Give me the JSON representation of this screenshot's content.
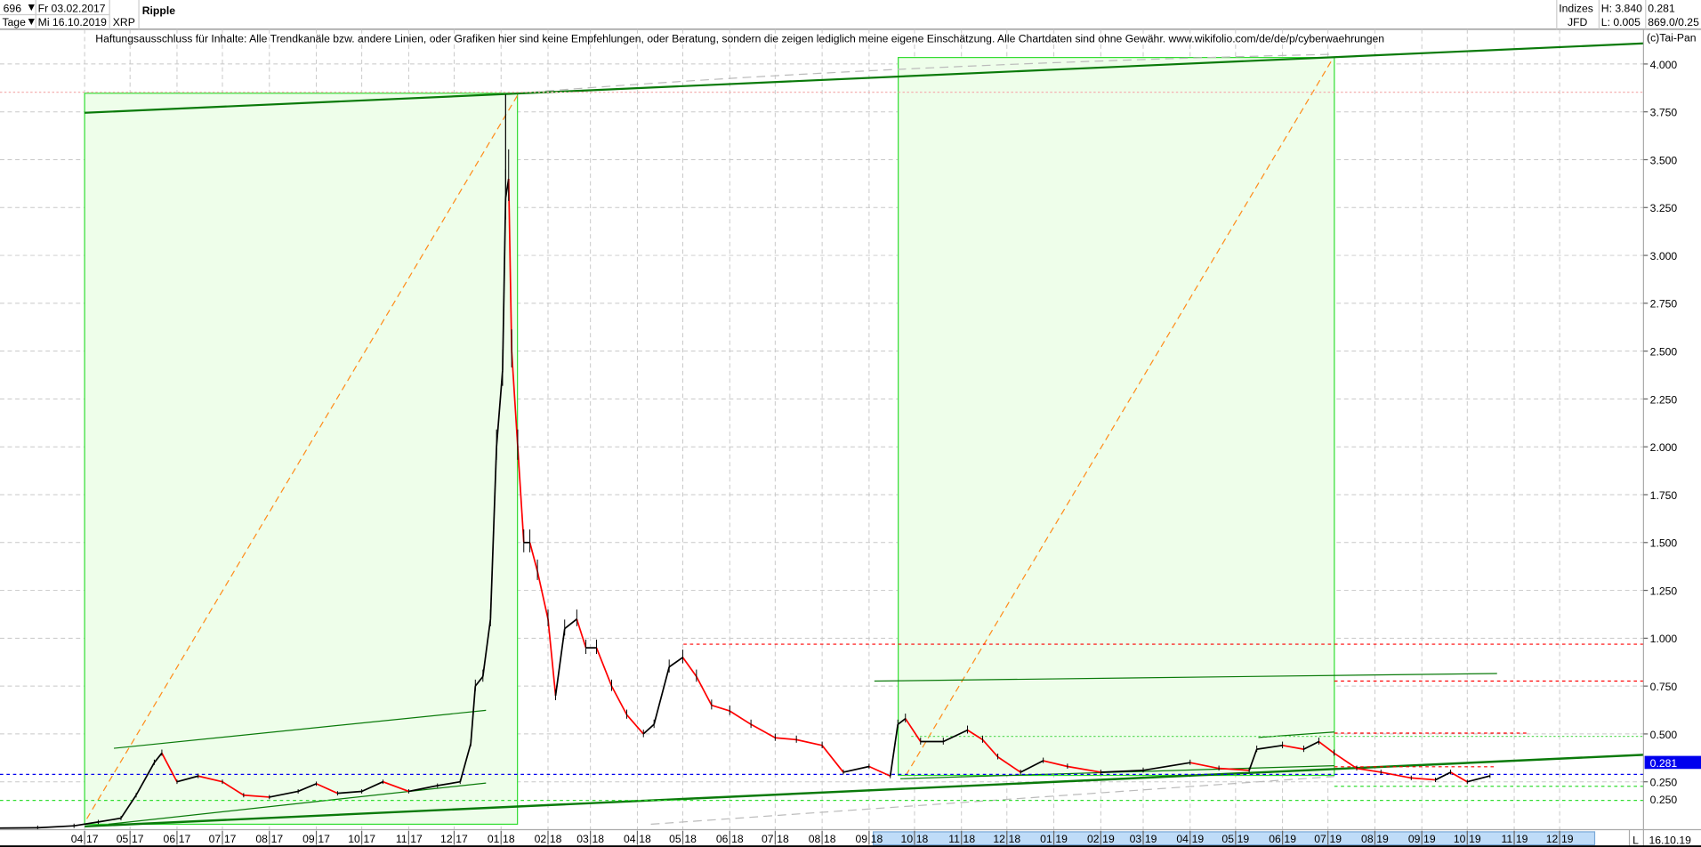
{
  "header": {
    "bar_count": "696",
    "period": "Tage",
    "start_date": "Fr 03.02.2017",
    "end_date": "Mi 16.10.2019",
    "symbol": "XRP",
    "title": "Ripple",
    "source_line1": "Indizes",
    "source_line2": "JFD",
    "high": "H: 3.840",
    "low": "L: 0.005",
    "last": "0.281",
    "scale_info": "869.0/0.25",
    "copyright": "(c)Tai-Pan"
  },
  "disclaimer": "Haftungsausschluss für Inhalte: Alle Trendkanäle bzw. andere Linien, oder Grafiken hier sind keine Empfehlungen, oder Beratung, sondern die zeigen lediglich meine eigene Einschätzung. Alle Chartdaten sind ohne Gewähr.  www.wikifolio.com/de/de/p/cyberwaehrungen",
  "footer": {
    "scale_mode": "L",
    "current_date": "16.10.19"
  },
  "colors": {
    "up": "#000000",
    "down": "#ff0000",
    "box_fill": "#eefeea",
    "box_stroke": "#33dd33",
    "trend": "#0a7a0a",
    "fib": "#ff8c1a",
    "last_price": "#0000ee",
    "scroll": "#bfdcf8"
  },
  "chart_data": {
    "type": "line",
    "title": "Ripple",
    "xlabel": "",
    "ylabel": "",
    "ylim": [
      0,
      4.1
    ],
    "yticks": [
      "4.000",
      "3.750",
      "3.500",
      "3.250",
      "3.000",
      "2.750",
      "2.500",
      "2.250",
      "2.000",
      "1.750",
      "1.500",
      "1.250",
      "1.000",
      "0.750",
      "0.500",
      "0.250"
    ],
    "xticks": [
      {
        "month": "04",
        "year": "17"
      },
      {
        "month": "05",
        "year": "17"
      },
      {
        "month": "06",
        "year": "17"
      },
      {
        "month": "07",
        "year": "17"
      },
      {
        "month": "08",
        "year": "17"
      },
      {
        "month": "09",
        "year": "17"
      },
      {
        "month": "10",
        "year": "17"
      },
      {
        "month": "11",
        "year": "17"
      },
      {
        "month": "12",
        "year": "17"
      },
      {
        "month": "01",
        "year": "18"
      },
      {
        "month": "02",
        "year": "18"
      },
      {
        "month": "03",
        "year": "18"
      },
      {
        "month": "04",
        "year": "18"
      },
      {
        "month": "05",
        "year": "18"
      },
      {
        "month": "06",
        "year": "18"
      },
      {
        "month": "07",
        "year": "18"
      },
      {
        "month": "08",
        "year": "18"
      },
      {
        "month": "09",
        "year": "18"
      },
      {
        "month": "10",
        "year": "18"
      },
      {
        "month": "11",
        "year": "18"
      },
      {
        "month": "12",
        "year": "18"
      },
      {
        "month": "01",
        "year": "19"
      },
      {
        "month": "02",
        "year": "19"
      },
      {
        "month": "03",
        "year": "19"
      },
      {
        "month": "04",
        "year": "19"
      },
      {
        "month": "05",
        "year": "19"
      },
      {
        "month": "06",
        "year": "19"
      },
      {
        "month": "07",
        "year": "19"
      },
      {
        "month": "08",
        "year": "19"
      },
      {
        "month": "09",
        "year": "19"
      },
      {
        "month": "10",
        "year": "19"
      },
      {
        "month": "11",
        "year": "19"
      },
      {
        "month": "12",
        "year": "19"
      }
    ],
    "grid": true,
    "last_price_label": "0.281",
    "support_label": "0.250",
    "high": 3.84,
    "low": 0.005,
    "series": [
      {
        "points": [
          [
            "2017-02-03",
            0.008
          ],
          [
            "2017-03-01",
            0.01
          ],
          [
            "2017-03-25",
            0.02
          ],
          [
            "2017-04-10",
            0.04
          ],
          [
            "2017-04-25",
            0.06
          ],
          [
            "2017-05-05",
            0.18
          ],
          [
            "2017-05-17",
            0.35
          ],
          [
            "2017-05-22",
            0.4
          ],
          [
            "2017-06-01",
            0.25
          ],
          [
            "2017-06-15",
            0.28
          ],
          [
            "2017-07-01",
            0.25
          ],
          [
            "2017-07-15",
            0.18
          ],
          [
            "2017-08-01",
            0.17
          ],
          [
            "2017-08-20",
            0.2
          ],
          [
            "2017-09-01",
            0.24
          ],
          [
            "2017-09-15",
            0.19
          ],
          [
            "2017-10-01",
            0.2
          ],
          [
            "2017-10-15",
            0.25
          ],
          [
            "2017-11-01",
            0.2
          ],
          [
            "2017-11-20",
            0.23
          ],
          [
            "2017-12-05",
            0.25
          ],
          [
            "2017-12-12",
            0.45
          ],
          [
            "2017-12-15",
            0.75
          ],
          [
            "2017-12-20",
            0.8
          ],
          [
            "2017-12-25",
            1.1
          ],
          [
            "2017-12-29",
            2.0
          ],
          [
            "2018-01-02",
            2.4
          ],
          [
            "2018-01-04",
            3.3
          ],
          [
            "2018-01-06",
            3.4
          ],
          [
            "2018-01-08",
            2.5
          ],
          [
            "2018-01-12",
            2.0
          ],
          [
            "2018-01-16",
            1.5
          ],
          [
            "2018-01-20",
            1.5
          ],
          [
            "2018-01-25",
            1.35
          ],
          [
            "2018-02-01",
            1.1
          ],
          [
            "2018-02-06",
            0.7
          ],
          [
            "2018-02-12",
            1.05
          ],
          [
            "2018-02-20",
            1.1
          ],
          [
            "2018-02-26",
            0.95
          ],
          [
            "2018-03-05",
            0.95
          ],
          [
            "2018-03-15",
            0.75
          ],
          [
            "2018-03-25",
            0.6
          ],
          [
            "2018-04-05",
            0.5
          ],
          [
            "2018-04-12",
            0.55
          ],
          [
            "2018-04-22",
            0.85
          ],
          [
            "2018-05-01",
            0.9
          ],
          [
            "2018-05-10",
            0.8
          ],
          [
            "2018-05-20",
            0.65
          ],
          [
            "2018-06-01",
            0.62
          ],
          [
            "2018-06-15",
            0.55
          ],
          [
            "2018-07-01",
            0.48
          ],
          [
            "2018-07-15",
            0.47
          ],
          [
            "2018-08-01",
            0.44
          ],
          [
            "2018-08-15",
            0.3
          ],
          [
            "2018-09-01",
            0.33
          ],
          [
            "2018-09-15",
            0.28
          ],
          [
            "2018-09-20",
            0.55
          ],
          [
            "2018-09-25",
            0.58
          ],
          [
            "2018-10-05",
            0.46
          ],
          [
            "2018-10-20",
            0.46
          ],
          [
            "2018-11-05",
            0.52
          ],
          [
            "2018-11-15",
            0.47
          ],
          [
            "2018-11-25",
            0.38
          ],
          [
            "2018-12-10",
            0.3
          ],
          [
            "2018-12-25",
            0.36
          ],
          [
            "2019-01-10",
            0.33
          ],
          [
            "2019-02-01",
            0.3
          ],
          [
            "2019-03-01",
            0.31
          ],
          [
            "2019-04-01",
            0.35
          ],
          [
            "2019-04-20",
            0.32
          ],
          [
            "2019-05-10",
            0.31
          ],
          [
            "2019-05-15",
            0.42
          ],
          [
            "2019-06-01",
            0.44
          ],
          [
            "2019-06-15",
            0.42
          ],
          [
            "2019-06-25",
            0.46
          ],
          [
            "2019-07-05",
            0.4
          ],
          [
            "2019-07-20",
            0.32
          ],
          [
            "2019-08-05",
            0.3
          ],
          [
            "2019-08-25",
            0.27
          ],
          [
            "2019-09-10",
            0.26
          ],
          [
            "2019-09-20",
            0.3
          ],
          [
            "2019-10-01",
            0.25
          ],
          [
            "2019-10-16",
            0.281
          ]
        ]
      }
    ]
  }
}
